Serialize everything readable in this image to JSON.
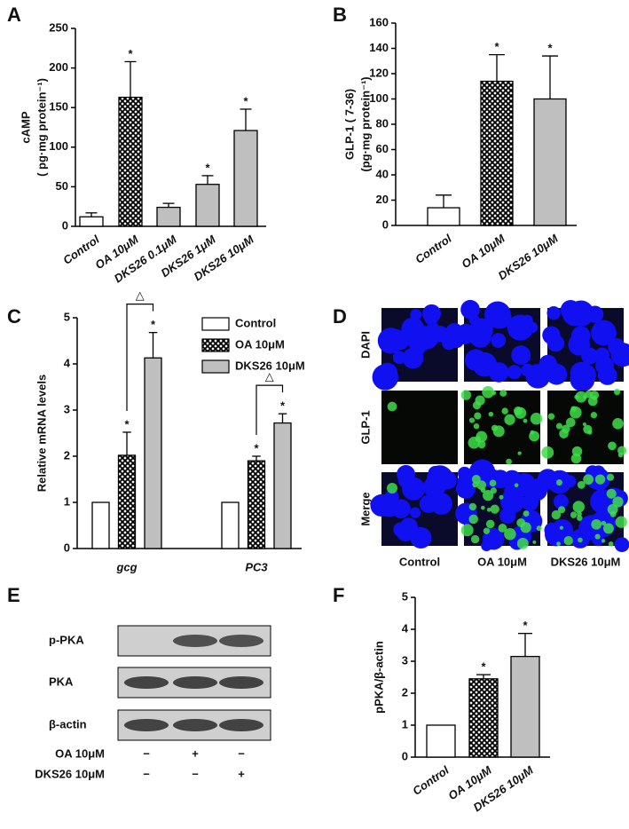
{
  "chart_data": [
    {
      "type": "bar",
      "panel": "A",
      "ylabel": [
        "cAMP",
        "( pg·mg protein⁻¹)"
      ],
      "categories": [
        "Control",
        "OA 10μM",
        "DKS26 0.1μM",
        "DKS26 1μM",
        "DKS26 10μM"
      ],
      "values": [
        12,
        163,
        24,
        53,
        121
      ],
      "errors": [
        5,
        45,
        5,
        11,
        27
      ],
      "fills": [
        "#ffffff",
        "crosshatch",
        "#bfbfbf",
        "#bfbfbf",
        "#bfbfbf"
      ],
      "annotations": [
        null,
        "*",
        null,
        "*",
        "*"
      ],
      "ylim": [
        0,
        250
      ],
      "yticks": [
        0,
        50,
        100,
        150,
        200,
        250
      ]
    },
    {
      "type": "bar",
      "panel": "B",
      "ylabel": [
        "GLP-1 ( 7-36)",
        "(pg·mg protein⁻¹)"
      ],
      "categories": [
        "Control",
        "OA 10μM",
        "DKS26 10μM"
      ],
      "values": [
        14,
        114,
        100
      ],
      "errors": [
        10,
        21,
        34
      ],
      "fills": [
        "#ffffff",
        "crosshatch",
        "#bfbfbf"
      ],
      "annotations": [
        null,
        "*",
        "*"
      ],
      "ylim": [
        0,
        160
      ],
      "yticks": [
        0,
        20,
        40,
        60,
        80,
        100,
        120,
        140,
        160
      ]
    },
    {
      "type": "grouped_bar",
      "panel": "C",
      "ylabel": [
        "Relative mRNA levels"
      ],
      "categories": [
        "gcg",
        "PC3"
      ],
      "series": [
        {
          "name": "Control",
          "fill": "#ffffff",
          "values": [
            1,
            1
          ],
          "errors": [
            0,
            0
          ],
          "annotations": [
            null,
            null
          ]
        },
        {
          "name": "OA 10μM",
          "fill": "crosshatch",
          "values": [
            2.02,
            1.9
          ],
          "errors": [
            0.5,
            0.1
          ],
          "annotations": [
            "*",
            "*"
          ]
        },
        {
          "name": "DKS26 10μM",
          "fill": "#bfbfbf",
          "values": [
            4.13,
            2.72
          ],
          "errors": [
            0.55,
            0.2
          ],
          "annotations": [
            "*",
            "*"
          ]
        }
      ],
      "brackets": [
        "△",
        "△"
      ],
      "ylim": [
        0,
        5
      ],
      "yticks": [
        0,
        1,
        2,
        3,
        4,
        5
      ]
    },
    {
      "type": "bar",
      "panel": "F",
      "ylabel": [
        "pPKA/β-actin"
      ],
      "categories": [
        "Control",
        "OA 10μM",
        "DKS26 10μM"
      ],
      "values": [
        1,
        2.45,
        3.15
      ],
      "errors": [
        0,
        0.13,
        0.72
      ],
      "fills": [
        "#ffffff",
        "crosshatch",
        "#bfbfbf"
      ],
      "annotations": [
        null,
        "*",
        "*"
      ],
      "ylim": [
        0,
        5
      ],
      "yticks": [
        0,
        1,
        2,
        3,
        4,
        5
      ]
    }
  ],
  "panel_d": {
    "panel": "D",
    "rows": [
      "DAPI",
      "GLP-1",
      "Merge"
    ],
    "columns": [
      "Control",
      "OA  10μM",
      "DKS26  10μM"
    ]
  },
  "panel_e": {
    "panel": "E",
    "rows": [
      "p-PKA",
      "PKA",
      "β-actin"
    ],
    "treatments": [
      {
        "name": "OA  10μM",
        "signs": [
          "−",
          "+",
          "−"
        ]
      },
      {
        "name": "DKS26  10μM",
        "signs": [
          "−",
          "−",
          "+"
        ]
      }
    ]
  }
}
